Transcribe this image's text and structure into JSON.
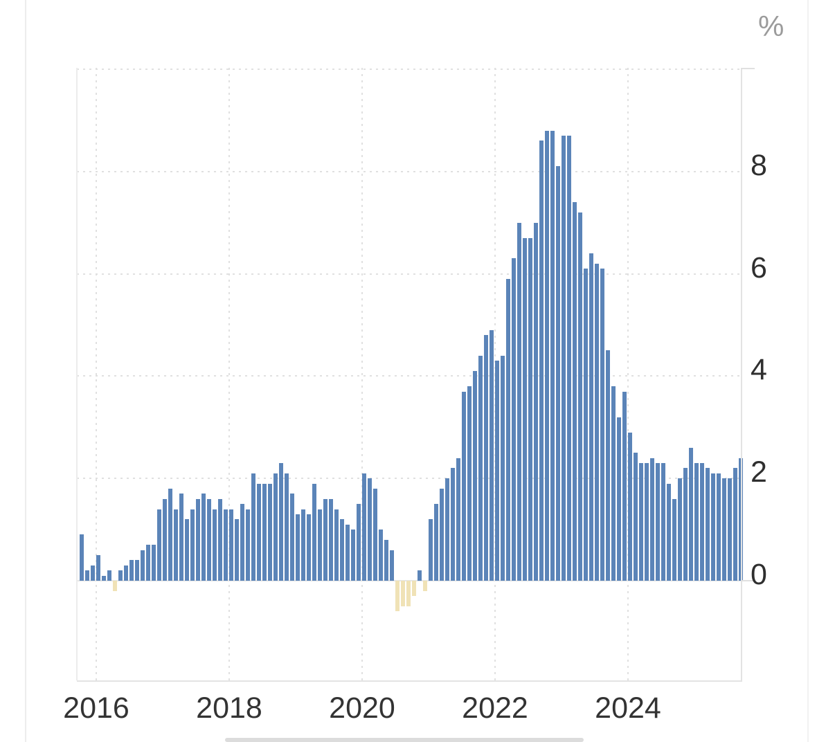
{
  "chart_data": {
    "type": "bar",
    "title": "",
    "unit_label": "%",
    "x_tick_labels": [
      "2016",
      "2018",
      "2020",
      "2022",
      "2024"
    ],
    "y_tick_labels": [
      "0",
      "2",
      "4",
      "6",
      "8"
    ],
    "y_tick_values": [
      0,
      2,
      4,
      6,
      8
    ],
    "y_gridline_values": [
      10,
      8,
      6,
      4,
      2
    ],
    "ylim": [
      -2,
      10
    ],
    "grid": "dotted",
    "legend_position": "none",
    "frequency": "monthly",
    "series": [
      {
        "name": "inflation-rate-percent-yoy",
        "start_month": "2015-10",
        "end_month": "2025-09",
        "months": [
          "2015-10",
          "2015-11",
          "2015-12",
          "2016-01",
          "2016-02",
          "2016-03",
          "2016-04",
          "2016-05",
          "2016-06",
          "2016-07",
          "2016-08",
          "2016-09",
          "2016-10",
          "2016-11",
          "2016-12",
          "2017-01",
          "2017-02",
          "2017-03",
          "2017-04",
          "2017-05",
          "2017-06",
          "2017-07",
          "2017-08",
          "2017-09",
          "2017-10",
          "2017-11",
          "2017-12",
          "2018-01",
          "2018-02",
          "2018-03",
          "2018-04",
          "2018-05",
          "2018-06",
          "2018-07",
          "2018-08",
          "2018-09",
          "2018-10",
          "2018-11",
          "2018-12",
          "2019-01",
          "2019-02",
          "2019-03",
          "2019-04",
          "2019-05",
          "2019-06",
          "2019-07",
          "2019-08",
          "2019-09",
          "2019-10",
          "2019-11",
          "2019-12",
          "2020-01",
          "2020-02",
          "2020-03",
          "2020-04",
          "2020-05",
          "2020-06",
          "2020-07",
          "2020-08",
          "2020-09",
          "2020-10",
          "2020-11",
          "2020-12",
          "2021-01",
          "2021-02",
          "2021-03",
          "2021-04",
          "2021-05",
          "2021-06",
          "2021-07",
          "2021-08",
          "2021-09",
          "2021-10",
          "2021-11",
          "2021-12",
          "2022-01",
          "2022-02",
          "2022-03",
          "2022-04",
          "2022-05",
          "2022-06",
          "2022-07",
          "2022-08",
          "2022-09",
          "2022-10",
          "2022-11",
          "2022-12",
          "2023-01",
          "2023-02",
          "2023-03",
          "2023-04",
          "2023-05",
          "2023-06",
          "2023-07",
          "2023-08",
          "2023-09",
          "2023-10",
          "2023-11",
          "2023-12",
          "2024-01",
          "2024-02",
          "2024-03",
          "2024-04",
          "2024-05",
          "2024-06",
          "2024-07",
          "2024-08",
          "2024-09",
          "2024-10",
          "2024-11",
          "2024-12",
          "2025-01",
          "2025-02",
          "2025-03",
          "2025-04",
          "2025-05",
          "2025-06",
          "2025-07",
          "2025-08",
          "2025-09"
        ],
        "values": [
          0.9,
          0.2,
          0.3,
          0.5,
          0.1,
          0.2,
          -0.2,
          0.2,
          0.3,
          0.4,
          0.4,
          0.6,
          0.7,
          0.7,
          1.4,
          1.6,
          1.8,
          1.4,
          1.7,
          1.2,
          1.4,
          1.6,
          1.7,
          1.6,
          1.4,
          1.6,
          1.4,
          1.4,
          1.2,
          1.5,
          1.4,
          2.1,
          1.9,
          1.9,
          1.9,
          2.1,
          2.3,
          2.1,
          1.7,
          1.3,
          1.4,
          1.3,
          1.9,
          1.4,
          1.6,
          1.6,
          1.4,
          1.2,
          1.1,
          1.0,
          1.5,
          2.1,
          2.0,
          1.8,
          1.0,
          0.8,
          0.6,
          -0.6,
          -0.5,
          -0.5,
          -0.3,
          0.2,
          -0.2,
          1.2,
          1.5,
          1.8,
          2.0,
          2.2,
          2.4,
          3.7,
          3.8,
          4.1,
          4.4,
          4.8,
          4.9,
          4.3,
          4.4,
          5.9,
          6.3,
          7.0,
          6.7,
          6.7,
          7.0,
          8.6,
          8.8,
          8.8,
          8.1,
          8.7,
          8.7,
          7.4,
          7.2,
          6.1,
          6.4,
          6.2,
          6.1,
          4.5,
          3.8,
          3.2,
          3.7,
          2.9,
          2.5,
          2.3,
          2.3,
          2.4,
          2.3,
          2.3,
          1.9,
          1.6,
          2.0,
          2.2,
          2.6,
          2.3,
          2.3,
          2.2,
          2.1,
          2.1,
          2.0,
          2.0,
          2.2,
          2.4
        ]
      }
    ],
    "colors": {
      "positive_bar": "#5b84b8",
      "negative_bar": "#f0e2b6",
      "gridline": "#e0e0e0",
      "axis_line": "#e3e3e3",
      "tick_text": "#2f2f2f",
      "unit_text": "#9b9b9b"
    }
  }
}
